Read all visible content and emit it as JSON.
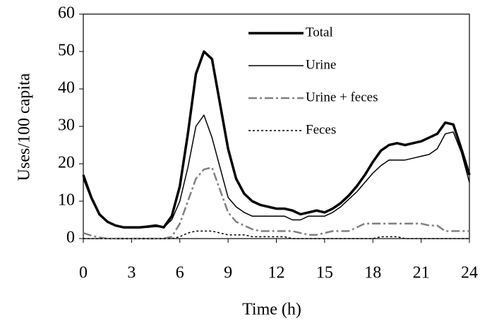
{
  "chart_data": {
    "type": "line",
    "x_label": "Time (h)",
    "y_label": "Uses/100 capita",
    "x": [
      0,
      0.5,
      1,
      1.5,
      2,
      2.5,
      3,
      3.5,
      4,
      4.5,
      5,
      5.5,
      6,
      6.5,
      7,
      7.5,
      8,
      8.5,
      9,
      9.5,
      10,
      10.5,
      11,
      11.5,
      12,
      12.5,
      13,
      13.5,
      14,
      14.5,
      15,
      15.5,
      16,
      16.5,
      17,
      17.5,
      18,
      18.5,
      19,
      19.5,
      20,
      20.5,
      21,
      21.5,
      22,
      22.5,
      23,
      23.5,
      24
    ],
    "series": [
      {
        "name": "Total",
        "color": "#000000",
        "style": "thick",
        "values": [
          17,
          11,
          6.5,
          4.5,
          3.5,
          3,
          3,
          3,
          3.2,
          3.5,
          3,
          6,
          14,
          28,
          44,
          50,
          48,
          36,
          24,
          16,
          12,
          10,
          9,
          8.5,
          8,
          8,
          7.5,
          6.5,
          7,
          7.5,
          7,
          8,
          9.5,
          11.5,
          14,
          17,
          20.5,
          23.5,
          25,
          25.5,
          25,
          25.5,
          26,
          27,
          28,
          31,
          30.5,
          24,
          17
        ]
      },
      {
        "name": "Urine",
        "color": "#000000",
        "style": "solid",
        "values": [
          16,
          10.5,
          6.5,
          4.5,
          3.5,
          3,
          3,
          3,
          3,
          3.2,
          3,
          5,
          10,
          19,
          30,
          33,
          27,
          19,
          11,
          8.5,
          7,
          6,
          6,
          6,
          6,
          6,
          5,
          5,
          6,
          6,
          6,
          7,
          8.5,
          10.5,
          12.5,
          15,
          17.5,
          19.5,
          21,
          21,
          21,
          21.5,
          22,
          22.5,
          24,
          28,
          28.5,
          23,
          15
        ]
      },
      {
        "name": "Urine + feces",
        "color": "#808080",
        "style": "dashdot",
        "values": [
          1.5,
          0.8,
          0.3,
          0,
          0,
          0,
          0,
          0,
          0,
          0,
          0,
          0.5,
          4,
          10,
          16,
          18.5,
          19,
          13,
          7,
          4.5,
          3.5,
          2.5,
          2,
          2,
          2,
          2,
          2,
          1.5,
          1,
          1,
          1.5,
          2,
          2,
          2,
          3,
          4,
          4,
          4,
          4,
          4,
          4,
          4,
          4,
          3.5,
          3.5,
          2,
          2,
          2,
          2
        ]
      },
      {
        "name": "Feces",
        "color": "#000000",
        "style": "dotted",
        "values": [
          0,
          0,
          0,
          0,
          0,
          0,
          0,
          0,
          0,
          0,
          0,
          0,
          0.5,
          1.5,
          2,
          2,
          2,
          1.5,
          1,
          1,
          1,
          0.5,
          0.5,
          0.5,
          0.5,
          0.5,
          0,
          0,
          0,
          0,
          0,
          0,
          0,
          0,
          0,
          0,
          0,
          0.5,
          0.5,
          0.5,
          0,
          0,
          0,
          0,
          0,
          0,
          0,
          0,
          0
        ]
      }
    ],
    "xlim": [
      0,
      24
    ],
    "xticks": [
      0,
      3,
      6,
      9,
      12,
      15,
      18,
      21,
      24
    ],
    "ylim": [
      0,
      60
    ],
    "yticks": [
      0,
      10,
      20,
      30,
      40,
      50,
      60
    ]
  }
}
